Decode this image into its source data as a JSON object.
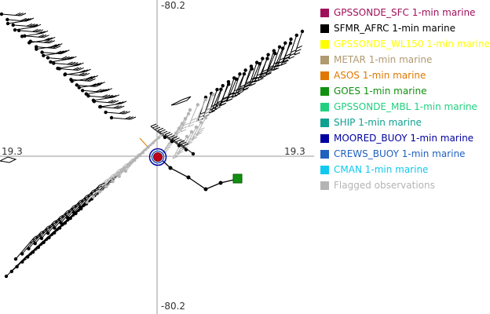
{
  "axis": {
    "top": "-80.2",
    "bottom": "-80.2",
    "left": "19.3",
    "right": "19.3"
  },
  "legend": [
    {
      "label": "GPSSONDE_SFC 1-min marine",
      "color": "#a0105a"
    },
    {
      "label": "SFMR_AFRC 1-min marine",
      "color": "#000000"
    },
    {
      "label": "GPSSONDE_WL150 1-min marine",
      "color": "#ffff00"
    },
    {
      "label": "METAR 1-min marine",
      "color": "#b09a70"
    },
    {
      "label": "ASOS 1-min marine",
      "color": "#e07800"
    },
    {
      "label": "GOES 1-min marine",
      "color": "#109010"
    },
    {
      "label": "GPSSONDE_MBL 1-min marine",
      "color": "#20d080"
    },
    {
      "label": "SHIP 1-min marine",
      "color": "#10a090"
    },
    {
      "label": "MOORED_BUOY 1-min marine",
      "color": "#0000a0"
    },
    {
      "label": "CREWS_BUOY 1-min marine",
      "color": "#2060c0"
    },
    {
      "label": "CMAN 1-min marine",
      "color": "#10c8f0"
    },
    {
      "label": "Flagged observations",
      "color": "#b4b4b4"
    }
  ]
}
